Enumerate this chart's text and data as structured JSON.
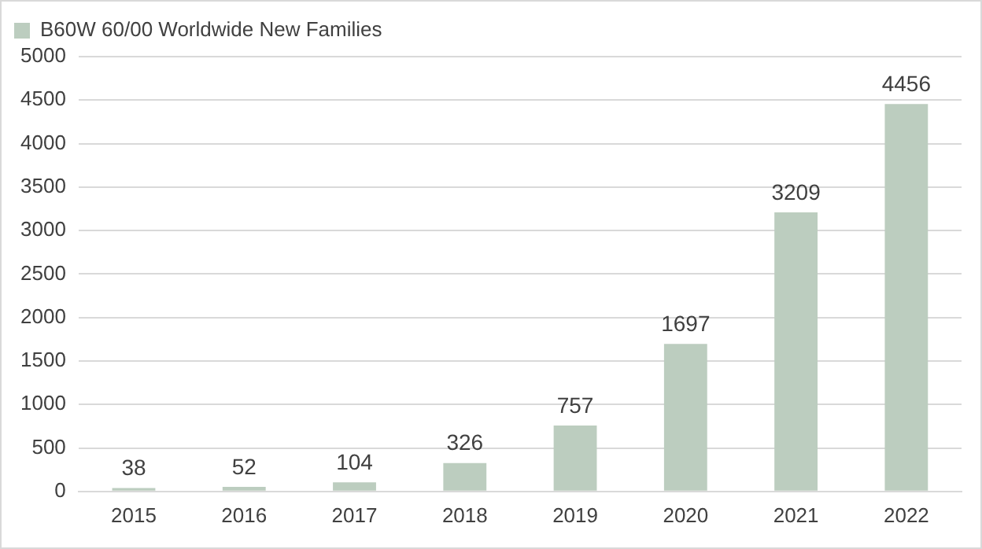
{
  "chart_data": {
    "type": "bar",
    "categories": [
      "2015",
      "2016",
      "2017",
      "2018",
      "2019",
      "2020",
      "2021",
      "2022"
    ],
    "series": [
      {
        "name": "B60W 60/00 Worldwide New Families",
        "color": "#bccdbf",
        "values": [
          38,
          52,
          104,
          326,
          757,
          1697,
          3209,
          4456
        ]
      }
    ],
    "ylim": [
      0,
      5000
    ],
    "yticks": [
      0,
      500,
      1000,
      1500,
      2000,
      2500,
      3000,
      3500,
      4000,
      4500,
      5000
    ],
    "grid": "y",
    "legend": "top left",
    "data_labels": true
  }
}
